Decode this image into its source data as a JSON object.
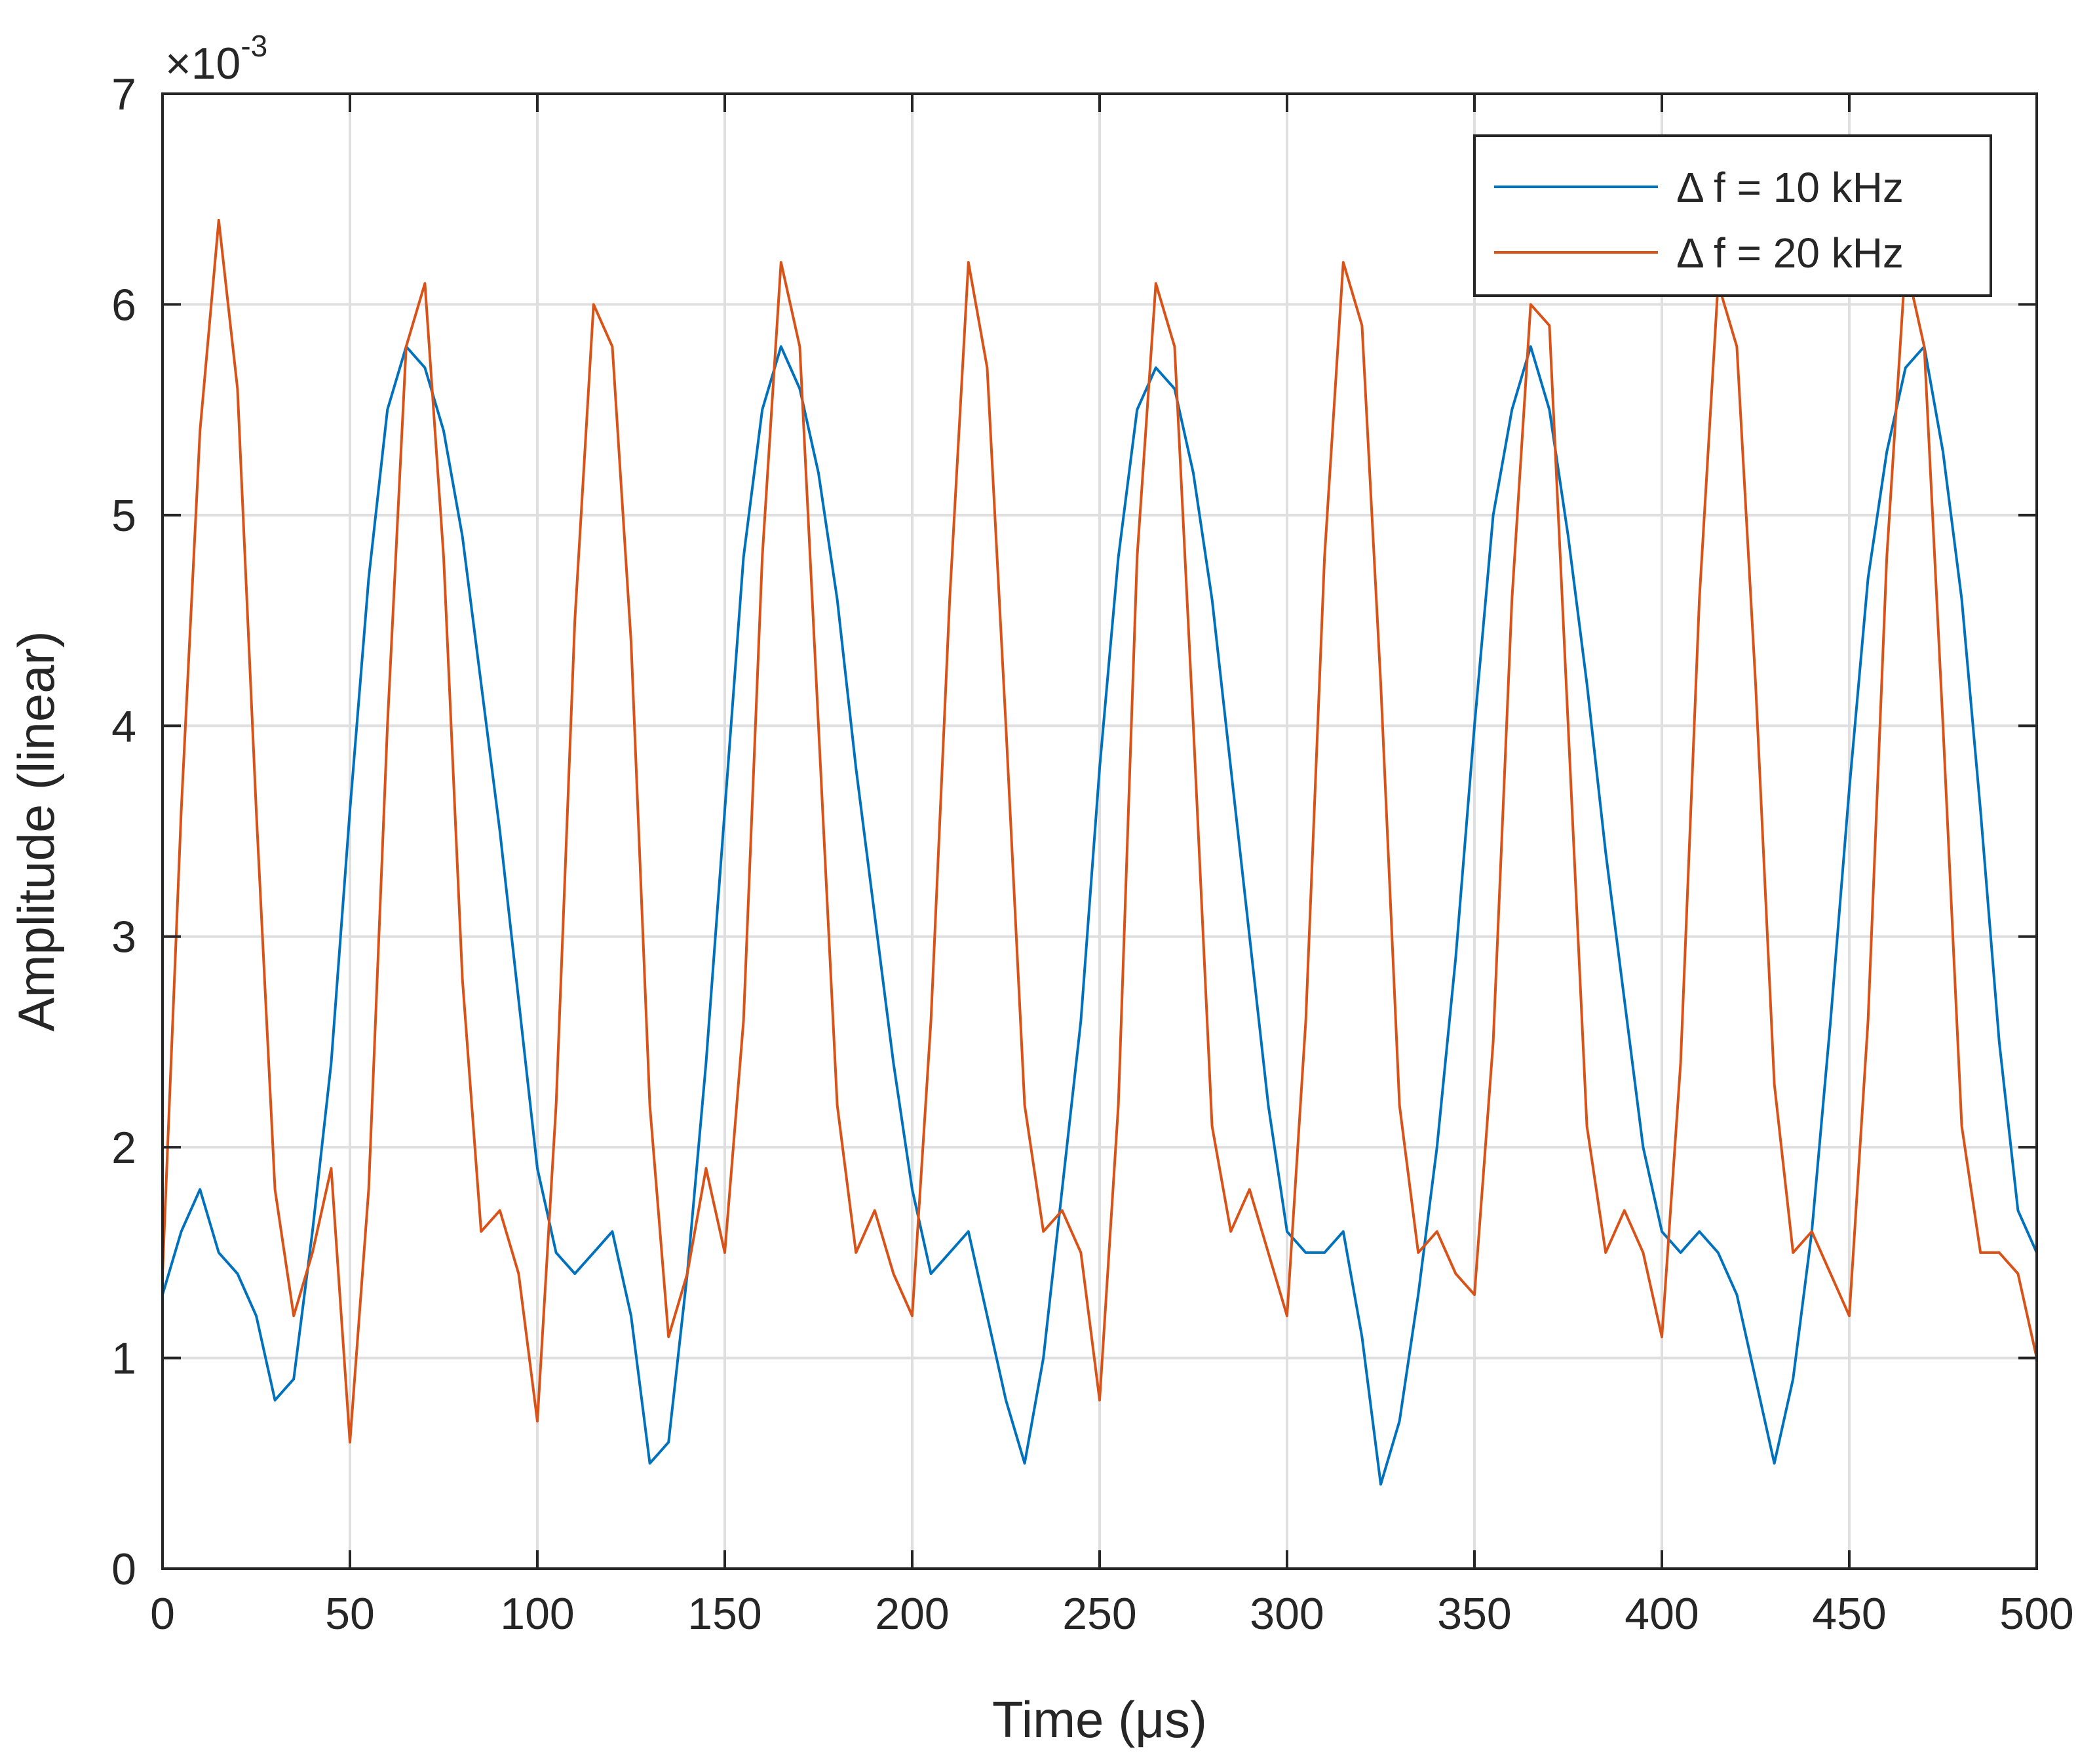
{
  "chart_data": {
    "type": "line",
    "title": "",
    "xlabel": "Time (μs)",
    "ylabel": "Amplitude (linear)",
    "y_multiplier": "×10",
    "y_multiplier_exponent": "-3",
    "xlim": [
      0,
      500
    ],
    "ylim": [
      0,
      7
    ],
    "grid": true,
    "legend_position": "top-right",
    "x_ticks": [
      0,
      50,
      100,
      150,
      200,
      250,
      300,
      350,
      400,
      450,
      500
    ],
    "x_tick_labels": [
      "0",
      "50",
      "100",
      "150",
      "200",
      "250",
      "300",
      "350",
      "400",
      "450",
      "500"
    ],
    "y_ticks": [
      0,
      1,
      2,
      3,
      4,
      5,
      6,
      7
    ],
    "y_tick_labels": [
      "0",
      "1",
      "2",
      "3",
      "4",
      "5",
      "6",
      "7"
    ],
    "series": [
      {
        "name": "Δ f = 10 kHz",
        "color": "#0072BD",
        "x": [
          0,
          5,
          10,
          15,
          20,
          25,
          30,
          35,
          40,
          45,
          50,
          55,
          60,
          65,
          70,
          75,
          80,
          85,
          90,
          95,
          100,
          105,
          110,
          115,
          120,
          125,
          130,
          135,
          140,
          145,
          150,
          155,
          160,
          165,
          170,
          175,
          180,
          185,
          190,
          195,
          200,
          205,
          210,
          215,
          220,
          225,
          230,
          235,
          240,
          245,
          250,
          255,
          260,
          265,
          270,
          275,
          280,
          285,
          290,
          295,
          300,
          305,
          310,
          315,
          320,
          325,
          330,
          335,
          340,
          345,
          350,
          355,
          360,
          365,
          370,
          375,
          380,
          385,
          390,
          395,
          400,
          405,
          410,
          415,
          420,
          425,
          430,
          435,
          440,
          445,
          450,
          455,
          460,
          465,
          470,
          475,
          480,
          485,
          490,
          495,
          500
        ],
        "values": [
          1.3,
          1.6,
          1.8,
          1.5,
          1.4,
          1.2,
          0.8,
          0.9,
          1.6,
          2.4,
          3.6,
          4.7,
          5.5,
          5.8,
          5.7,
          5.4,
          4.9,
          4.2,
          3.5,
          2.7,
          1.9,
          1.5,
          1.4,
          1.5,
          1.6,
          1.2,
          0.5,
          0.6,
          1.4,
          2.4,
          3.6,
          4.8,
          5.5,
          5.8,
          5.6,
          5.2,
          4.6,
          3.8,
          3.1,
          2.4,
          1.8,
          1.4,
          1.5,
          1.6,
          1.2,
          0.8,
          0.5,
          1.0,
          1.8,
          2.6,
          3.8,
          4.8,
          5.5,
          5.7,
          5.6,
          5.2,
          4.6,
          3.8,
          3.0,
          2.2,
          1.6,
          1.5,
          1.5,
          1.6,
          1.1,
          0.4,
          0.7,
          1.3,
          2.0,
          2.9,
          4.0,
          5.0,
          5.5,
          5.8,
          5.5,
          4.9,
          4.2,
          3.4,
          2.7,
          2.0,
          1.6,
          1.5,
          1.6,
          1.5,
          1.3,
          0.9,
          0.5,
          0.9,
          1.6,
          2.6,
          3.7,
          4.7,
          5.3,
          5.7,
          5.8,
          5.3,
          4.6,
          3.6,
          2.5,
          1.7,
          1.5
        ]
      },
      {
        "name": "Δ f = 20 kHz",
        "color": "#D95319",
        "x": [
          0,
          5,
          10,
          15,
          20,
          25,
          30,
          35,
          40,
          45,
          50,
          55,
          60,
          65,
          70,
          75,
          80,
          85,
          90,
          95,
          100,
          105,
          110,
          115,
          120,
          125,
          130,
          135,
          140,
          145,
          150,
          155,
          160,
          165,
          170,
          175,
          180,
          185,
          190,
          195,
          200,
          205,
          210,
          215,
          220,
          225,
          230,
          235,
          240,
          245,
          250,
          255,
          260,
          265,
          270,
          275,
          280,
          285,
          290,
          295,
          300,
          305,
          310,
          315,
          320,
          325,
          330,
          335,
          340,
          345,
          350,
          355,
          360,
          365,
          370,
          375,
          380,
          385,
          390,
          395,
          400,
          405,
          410,
          415,
          420,
          425,
          430,
          435,
          440,
          445,
          450,
          455,
          460,
          465,
          470,
          475,
          480,
          485,
          490,
          495,
          500
        ],
        "values": [
          1.4,
          3.6,
          5.4,
          6.4,
          5.6,
          3.6,
          1.8,
          1.2,
          1.5,
          1.9,
          0.6,
          1.8,
          4.0,
          5.8,
          6.1,
          4.8,
          2.8,
          1.6,
          1.7,
          1.4,
          0.7,
          2.2,
          4.5,
          6.0,
          5.8,
          4.4,
          2.2,
          1.1,
          1.4,
          1.9,
          1.5,
          2.6,
          4.8,
          6.2,
          5.8,
          4.0,
          2.2,
          1.5,
          1.7,
          1.4,
          1.2,
          2.6,
          4.6,
          6.2,
          5.7,
          4.0,
          2.2,
          1.6,
          1.7,
          1.5,
          0.8,
          2.2,
          4.8,
          6.1,
          5.8,
          4.0,
          2.1,
          1.6,
          1.8,
          1.5,
          1.2,
          2.6,
          4.8,
          6.2,
          5.9,
          4.2,
          2.2,
          1.5,
          1.6,
          1.4,
          1.3,
          2.5,
          4.6,
          6.0,
          5.9,
          4.0,
          2.1,
          1.5,
          1.7,
          1.5,
          1.1,
          2.4,
          4.6,
          6.1,
          5.8,
          4.2,
          2.3,
          1.5,
          1.6,
          1.4,
          1.2,
          2.6,
          4.8,
          6.2,
          5.8,
          4.0,
          2.1,
          1.5,
          1.5,
          1.4,
          1.0
        ]
      }
    ]
  }
}
